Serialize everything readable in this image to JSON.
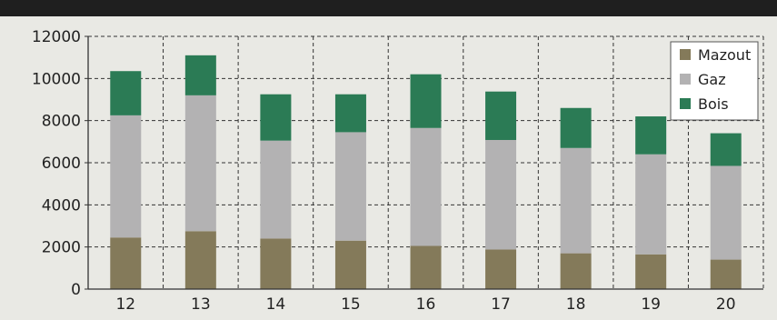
{
  "chart_data": {
    "type": "bar",
    "stacked": true,
    "categories": [
      "12",
      "13",
      "14",
      "15",
      "16",
      "17",
      "18",
      "19",
      "20"
    ],
    "series": [
      {
        "name": "Mazout",
        "color": "#847a5a",
        "values": [
          2450,
          2750,
          2400,
          2300,
          2050,
          1880,
          1700,
          1650,
          1400
        ]
      },
      {
        "name": "Gaz",
        "color": "#b3b2b3",
        "values": [
          5800,
          6450,
          4650,
          5150,
          5600,
          5200,
          5000,
          4750,
          4450
        ]
      },
      {
        "name": "Bois",
        "color": "#2b7b55",
        "values": [
          2100,
          1900,
          2200,
          1800,
          2550,
          2300,
          1900,
          1800,
          1550
        ]
      }
    ],
    "yticks": [
      "0",
      "2000",
      "4000",
      "6000",
      "8000",
      "10000",
      "12000"
    ],
    "ytick_values": [
      0,
      2000,
      4000,
      6000,
      8000,
      10000,
      12000
    ],
    "ylim": [
      0,
      12000
    ],
    "title": "",
    "xlabel": "",
    "ylabel": "",
    "grid": true,
    "legend_position": "top-right"
  },
  "colors": {
    "background": "#e9e9e4",
    "top_bar": "#1f1f1f",
    "grid": "#333333"
  }
}
